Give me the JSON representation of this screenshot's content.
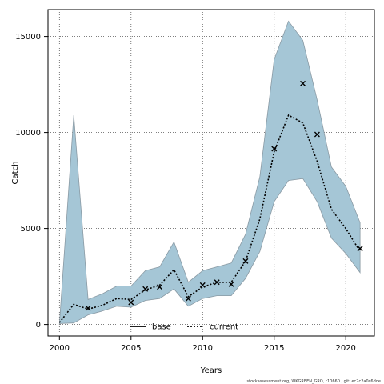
{
  "chart_data": {
    "type": "line",
    "xlabel": "Years",
    "ylabel": "Catch",
    "xlim": [
      1999.2,
      2022.0
    ],
    "ylim": [
      -600,
      16400
    ],
    "xticks": [
      2000,
      2005,
      2010,
      2015,
      2020
    ],
    "yticks": [
      0,
      5000,
      10000,
      15000
    ],
    "grid": true,
    "legend": {
      "placement": "bottom-center",
      "entries": [
        {
          "label": "base",
          "style": "solid",
          "color": "#000000"
        },
        {
          "label": "current",
          "style": "dotted",
          "color": "#000000"
        }
      ]
    },
    "band": {
      "color": "#a5c6d6",
      "x": [
        2000,
        2001,
        2002,
        2003,
        2004,
        2005,
        2006,
        2007,
        2008,
        2009,
        2010,
        2011,
        2012,
        2013,
        2014,
        2015,
        2016,
        2017,
        2018,
        2019,
        2020,
        2021
      ],
      "lower": [
        50,
        80,
        500,
        700,
        950,
        900,
        1250,
        1350,
        1850,
        950,
        1350,
        1500,
        1500,
        2400,
        3800,
        6400,
        7500,
        7600,
        6400,
        4500,
        3700,
        2700
      ],
      "upper": [
        50,
        10900,
        1300,
        1600,
        2000,
        2000,
        2800,
        3000,
        4300,
        2200,
        2800,
        3000,
        3200,
        4700,
        7700,
        13800,
        15800,
        14800,
        11700,
        8200,
        7200,
        5300
      ]
    },
    "series": [
      {
        "name": "current",
        "style": "dotted",
        "x": [
          2000,
          2001,
          2002,
          2003,
          2004,
          2005,
          2006,
          2007,
          2008,
          2009,
          2010,
          2011,
          2012,
          2013,
          2014,
          2015,
          2016,
          2017,
          2018,
          2019,
          2020,
          2021
        ],
        "values": [
          100,
          1050,
          800,
          1000,
          1350,
          1300,
          1800,
          2050,
          2850,
          1450,
          1950,
          2200,
          2200,
          3300,
          5500,
          9000,
          10900,
          10500,
          8500,
          6000,
          5000,
          3800
        ]
      }
    ],
    "observations": {
      "marker": "x",
      "x": [
        2002,
        2005,
        2006,
        2007,
        2009,
        2010,
        2011,
        2012,
        2013,
        2015,
        2017,
        2018,
        2021
      ],
      "values": [
        850,
        1150,
        1850,
        1950,
        1350,
        2050,
        2200,
        2100,
        3300,
        9150,
        12550,
        9900,
        3950
      ]
    }
  },
  "footer": "stockassessment.org, WKGREEN_GRO, r10660 , git: ec2c2a0c6dde"
}
